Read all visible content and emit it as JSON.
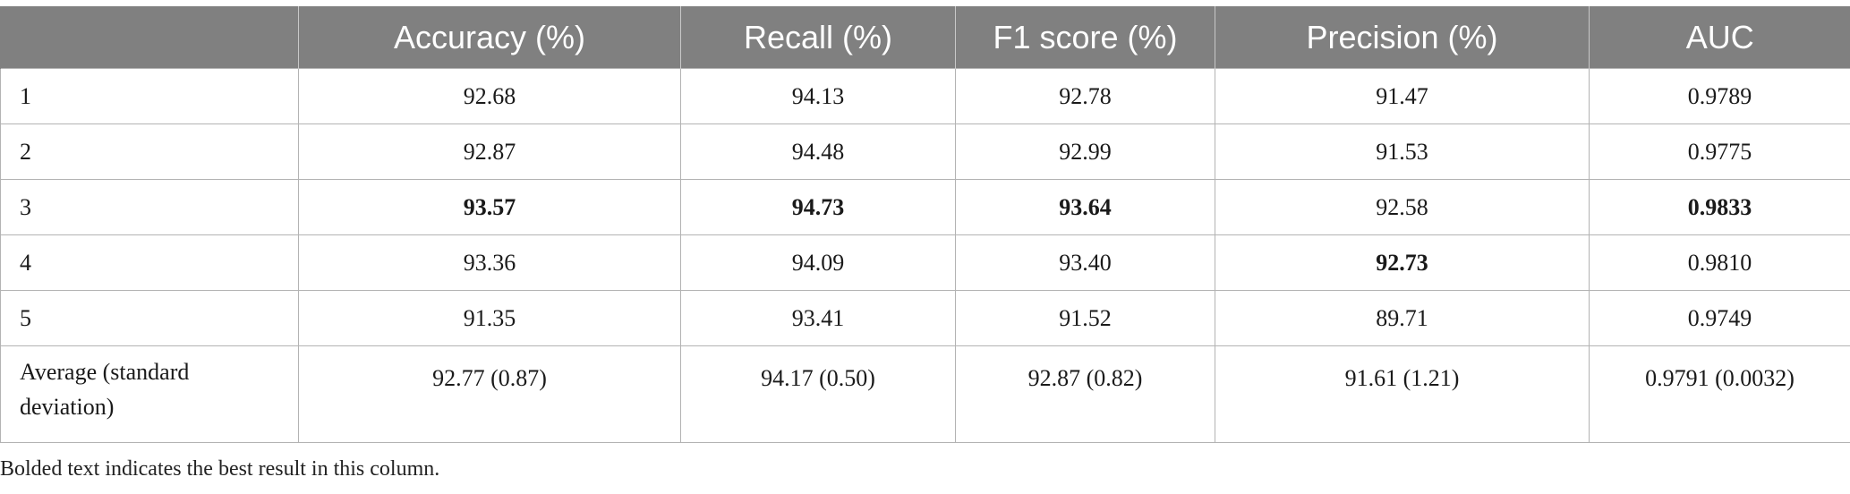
{
  "table": {
    "headers": [
      "",
      "Accuracy (%)",
      "Recall (%)",
      "F1 score (%)",
      "Precision (%)",
      "AUC"
    ],
    "rows": [
      {
        "label": "1",
        "values": [
          "92.68",
          "94.13",
          "92.78",
          "91.47",
          "0.9789"
        ],
        "bold": [
          false,
          false,
          false,
          false,
          false
        ]
      },
      {
        "label": "2",
        "values": [
          "92.87",
          "94.48",
          "92.99",
          "91.53",
          "0.9775"
        ],
        "bold": [
          false,
          false,
          false,
          false,
          false
        ]
      },
      {
        "label": "3",
        "values": [
          "93.57",
          "94.73",
          "93.64",
          "92.58",
          "0.9833"
        ],
        "bold": [
          true,
          true,
          true,
          false,
          true
        ]
      },
      {
        "label": "4",
        "values": [
          "93.36",
          "94.09",
          "93.40",
          "92.73",
          "0.9810"
        ],
        "bold": [
          false,
          false,
          false,
          true,
          false
        ]
      },
      {
        "label": "5",
        "values": [
          "91.35",
          "93.41",
          "91.52",
          "89.71",
          "0.9749"
        ],
        "bold": [
          false,
          false,
          false,
          false,
          false
        ]
      },
      {
        "label": "Average (standard deviation)",
        "values": [
          "92.77 (0.87)",
          "94.17 (0.50)",
          "92.87 (0.82)",
          "91.61 (1.21)",
          "0.9791 (0.0032)"
        ],
        "bold": [
          false,
          false,
          false,
          false,
          false
        ]
      }
    ]
  },
  "footnote": "Bolded text indicates the best result in this column.",
  "colors": {
    "header_background": "#808080",
    "header_text": "#ffffff",
    "grid_line": "#b3b3b3"
  }
}
